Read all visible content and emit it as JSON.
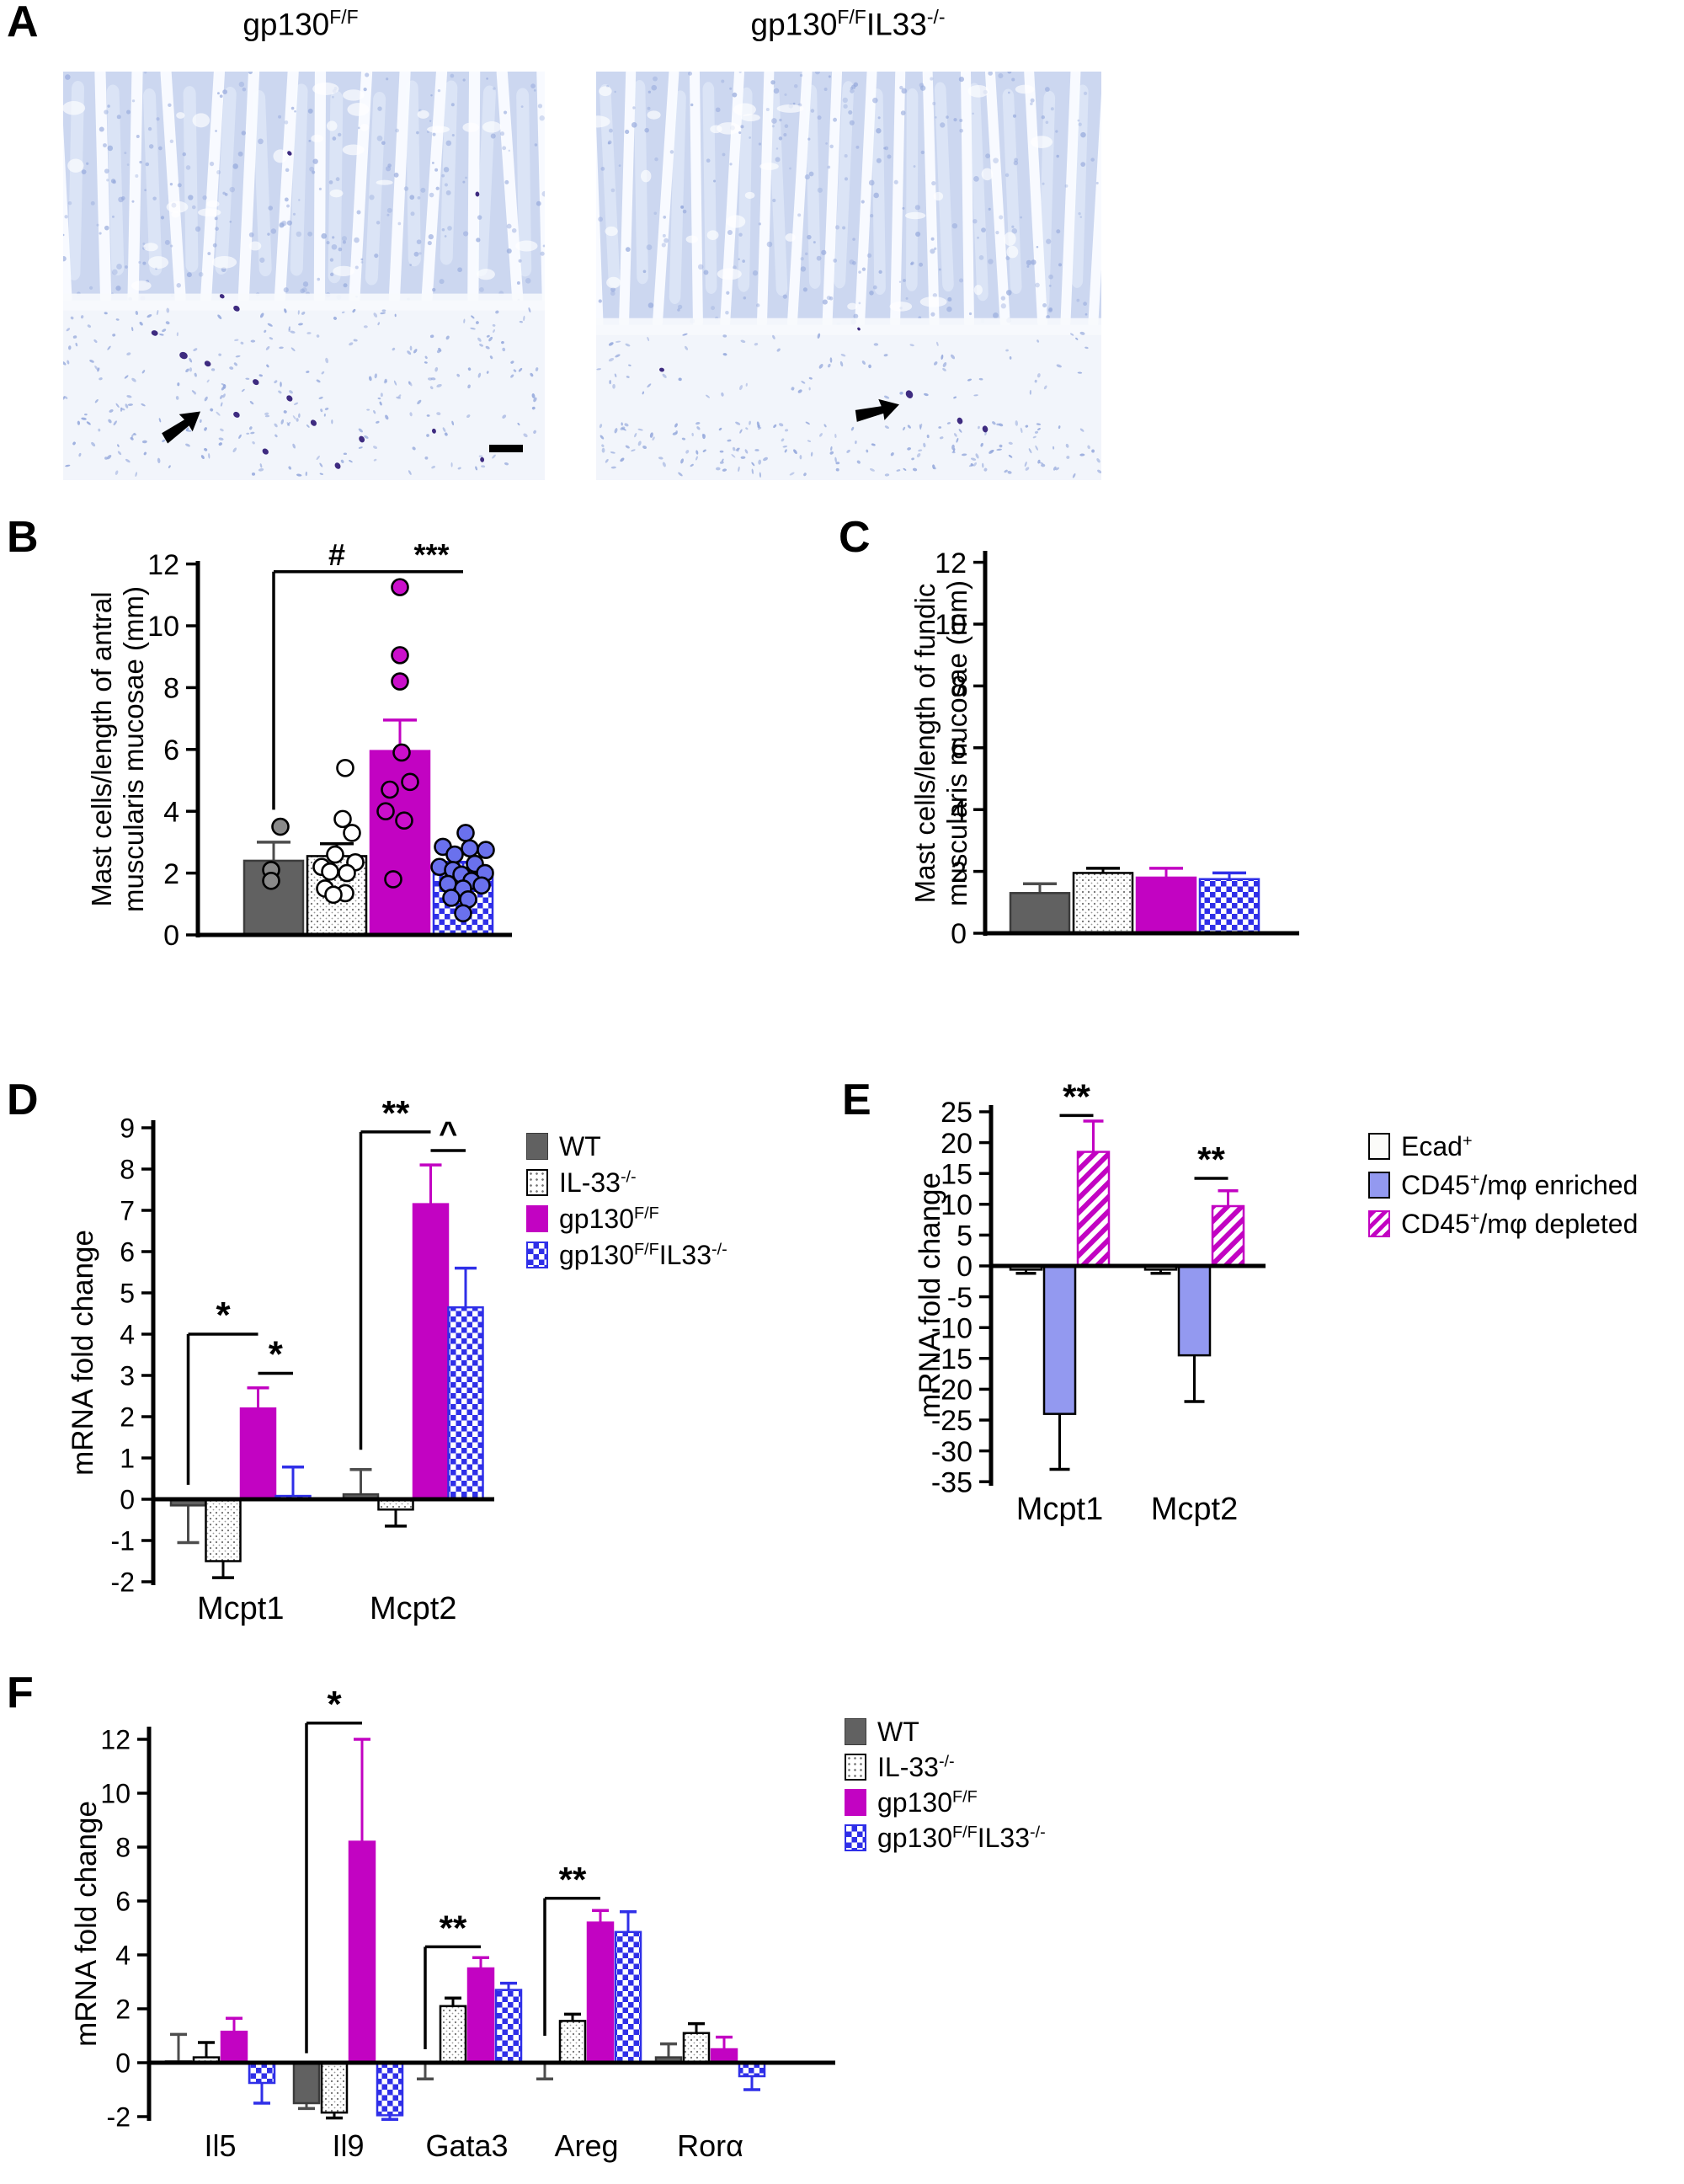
{
  "colors": {
    "magenta": "#c203c2",
    "blue": "#2f2fe8",
    "periwinkle": "#9399f0",
    "gray": "#616161",
    "err_gray": "#4d4d4d",
    "point_gray": "#8a8a8a",
    "point_blue": "#6a71ed",
    "point_magenta": "#cb0fcb",
    "hist_base": "#ccd7f0",
    "hist_nuclei": "#93a7db",
    "hist_pale": "#f2f5fb",
    "hist_dark": "#3e2b80"
  },
  "panels": {
    "A": {
      "label": "A"
    },
    "B": {
      "label": "B"
    },
    "C": {
      "label": "C"
    },
    "D": {
      "label": "D"
    },
    "E": {
      "label": "E"
    },
    "F": {
      "label": "F"
    }
  },
  "panel_a": {
    "titles": [
      {
        "parts": [
          {
            "t": "gp130"
          },
          {
            "t": "F/F",
            "sup": true
          }
        ]
      },
      {
        "parts": [
          {
            "t": "gp130"
          },
          {
            "t": "F/F",
            "sup": true
          },
          {
            "t": "IL33"
          },
          {
            "t": "-/-",
            "sup": true
          }
        ]
      }
    ],
    "images": [
      {
        "name": "histology-gp130FF",
        "arrow": true,
        "scalebar": true
      },
      {
        "name": "histology-gp130FF-IL33KO",
        "arrow": true,
        "scalebar": false
      }
    ]
  },
  "legend_groups": {
    "genotypes": [
      {
        "style": "gray",
        "parts": [
          {
            "t": "WT"
          }
        ]
      },
      {
        "style": "dotted",
        "parts": [
          {
            "t": "IL-33"
          },
          {
            "t": "-/-",
            "sup": true
          }
        ]
      },
      {
        "style": "magenta",
        "parts": [
          {
            "t": "gp130"
          },
          {
            "t": "F/F",
            "sup": true
          }
        ]
      },
      {
        "style": "checker",
        "parts": [
          {
            "t": "gp130"
          },
          {
            "t": "F/F",
            "sup": true
          },
          {
            "t": "IL33"
          },
          {
            "t": "-/-",
            "sup": true
          }
        ]
      }
    ],
    "fractions": [
      {
        "style": "white",
        "parts": [
          {
            "t": "Ecad"
          },
          {
            "t": "+",
            "sup": true
          }
        ]
      },
      {
        "style": "periwinkle",
        "parts": [
          {
            "t": "CD45"
          },
          {
            "t": "+",
            "sup": true
          },
          {
            "t": "/mφ enriched"
          }
        ]
      },
      {
        "style": "hatch",
        "parts": [
          {
            "t": "CD45"
          },
          {
            "t": "+",
            "sup": true
          },
          {
            "t": "/mφ depleted"
          }
        ]
      }
    ]
  },
  "chart_data": [
    {
      "id": "B",
      "type": "bar-scatter",
      "ylabel_lines": [
        "Mast cells/length of antral",
        "muscularis mucosae (mm)"
      ],
      "ylim": [
        0,
        12
      ],
      "yticks": [
        0,
        2,
        4,
        6,
        8,
        10,
        12
      ],
      "categories": [
        ""
      ],
      "series": [
        {
          "name": "WT",
          "style": "gray",
          "values": [
            2.4
          ],
          "err": [
            3.0
          ],
          "points": [
            [
              [
                8,
                3.5
              ],
              [
                -3,
                2.1
              ],
              [
                -3,
                1.75
              ]
            ]
          ]
        },
        {
          "name": "IL-33-/-",
          "style": "dotted",
          "values": [
            2.55
          ],
          "err": [
            2.95
          ],
          "points": [
            [
              [
                10,
                5.4
              ],
              [
                7,
                3.75
              ],
              [
                18,
                3.3
              ],
              [
                -2,
                2.6
              ],
              [
                22,
                2.35
              ],
              [
                -18,
                2.2
              ],
              [
                -8,
                2.05
              ],
              [
                12,
                2.0
              ],
              [
                -14,
                1.5
              ],
              [
                10,
                1.35
              ],
              [
                -4,
                1.3
              ]
            ]
          ]
        },
        {
          "name": "gp130F/F",
          "style": "magenta",
          "values": [
            5.95
          ],
          "err": [
            6.95
          ],
          "points": [
            [
              [
                0,
                11.25
              ],
              [
                0,
                9.05
              ],
              [
                0,
                8.2
              ],
              [
                2,
                5.9
              ],
              [
                12,
                4.95
              ],
              [
                -12,
                4.7
              ],
              [
                -17,
                4.0
              ],
              [
                5,
                3.7
              ],
              [
                -8,
                1.8
              ]
            ]
          ]
        },
        {
          "name": "gp130F/F IL33-/-",
          "style": "checker",
          "values": [
            2.1
          ],
          "err": [
            2.35
          ],
          "points": [
            [
              [
                3,
                3.3
              ],
              [
                -24,
                2.85
              ],
              [
                8,
                2.8
              ],
              [
                27,
                2.75
              ],
              [
                -10,
                2.6
              ],
              [
                14,
                2.3
              ],
              [
                -28,
                2.2
              ],
              [
                -12,
                2.1
              ],
              [
                26,
                2.0
              ],
              [
                -2,
                1.95
              ],
              [
                10,
                1.75
              ],
              [
                -18,
                1.65
              ],
              [
                22,
                1.6
              ],
              [
                0,
                1.5
              ],
              [
                -14,
                1.2
              ],
              [
                6,
                1.15
              ],
              [
                0,
                0.7
              ]
            ]
          ]
        }
      ],
      "annotations": [
        {
          "kind": "bracket",
          "text": "#",
          "y": 11.75,
          "from": [
            0,
            0
          ],
          "to": [
            0,
            2
          ],
          "drop": 4.05,
          "fs": 36
        },
        {
          "kind": "line",
          "text": "***",
          "y": 11.75,
          "from": [
            0,
            2
          ],
          "to": [
            0,
            3
          ],
          "fs": 36
        }
      ]
    },
    {
      "id": "C",
      "type": "bar",
      "ylabel_lines": [
        "Mast cells/length of fundic",
        "muscularis mucosae (mm)"
      ],
      "ylim": [
        0,
        12
      ],
      "yticks": [
        0,
        2,
        4,
        6,
        8,
        10,
        12
      ],
      "categories": [
        ""
      ],
      "series": [
        {
          "name": "WT",
          "style": "gray",
          "values": [
            1.3
          ],
          "err": [
            1.6
          ]
        },
        {
          "name": "IL-33-/-",
          "style": "dotted",
          "values": [
            1.95
          ],
          "err": [
            2.1
          ]
        },
        {
          "name": "gp130F/F",
          "style": "magenta",
          "values": [
            1.8
          ],
          "err": [
            2.1
          ]
        },
        {
          "name": "gp130F/F IL33-/-",
          "style": "checker",
          "values": [
            1.75
          ],
          "err": [
            1.95
          ]
        }
      ],
      "annotations": []
    },
    {
      "id": "D",
      "type": "bar",
      "legend": "genotypes",
      "ylabel_lines": [
        "mRNA fold change"
      ],
      "ylim": [
        -2,
        9
      ],
      "yticks": [
        -2,
        -1,
        0,
        1,
        2,
        3,
        4,
        5,
        6,
        7,
        8,
        9
      ],
      "categories": [
        "Mcpt1",
        "Mcpt2"
      ],
      "series": [
        {
          "name": "WT",
          "style": "gray",
          "values": [
            -0.15,
            0.12
          ],
          "err": [
            -1.05,
            0.72
          ]
        },
        {
          "name": "IL-33-/-",
          "style": "dotted",
          "values": [
            -1.5,
            -0.25
          ],
          "err": [
            -1.9,
            -0.65
          ]
        },
        {
          "name": "gp130F/F",
          "style": "magenta",
          "values": [
            2.2,
            7.15
          ],
          "err": [
            2.7,
            8.1
          ]
        },
        {
          "name": "gp130F/F IL33-/-",
          "style": "checker",
          "values": [
            0.08,
            4.65
          ],
          "err": [
            0.78,
            5.6
          ]
        }
      ],
      "annotations": [
        {
          "kind": "bracket",
          "text": "*",
          "y": 4.0,
          "from": [
            0,
            0
          ],
          "to": [
            0,
            2
          ],
          "drop": 0.35,
          "fs": 44
        },
        {
          "kind": "line",
          "text": "*",
          "y": 3.05,
          "from": [
            0,
            2
          ],
          "to": [
            0,
            3
          ],
          "fs": 44
        },
        {
          "kind": "bracket",
          "text": "**",
          "y": 8.9,
          "from": [
            1,
            0
          ],
          "to": [
            1,
            2
          ],
          "drop": 1.2,
          "fs": 42
        },
        {
          "kind": "line",
          "text": "^",
          "y": 8.45,
          "from": [
            1,
            2
          ],
          "to": [
            1,
            3
          ],
          "fs": 38
        }
      ]
    },
    {
      "id": "E",
      "type": "bar",
      "legend": "fractions",
      "ylabel_lines": [
        "mRNA fold change"
      ],
      "ylim": [
        -35,
        25
      ],
      "yticks": [
        -35,
        -30,
        -25,
        -20,
        -15,
        -10,
        -5,
        0,
        5,
        10,
        15,
        20,
        25
      ],
      "categories": [
        "Mcpt1",
        "Mcpt2"
      ],
      "series": [
        {
          "name": "Ecad+",
          "style": "white",
          "values": [
            -0.6,
            -0.6
          ],
          "err": [
            -1.2,
            -1.2
          ]
        },
        {
          "name": "CD45+/mφ enriched",
          "style": "periwinkle",
          "values": [
            -24,
            -14.5
          ],
          "err": [
            -33,
            -22
          ]
        },
        {
          "name": "CD45+/mφ depleted",
          "style": "hatch",
          "values": [
            18.5,
            9.7
          ],
          "err": [
            23.5,
            12.2
          ]
        }
      ],
      "annotations": [
        {
          "kind": "line",
          "text": "**",
          "y": 24.4,
          "from": [
            0,
            1
          ],
          "to": [
            0,
            2
          ],
          "fs": 42
        },
        {
          "kind": "line",
          "text": "**",
          "y": 14.2,
          "from": [
            1,
            1
          ],
          "to": [
            1,
            2
          ],
          "fs": 42
        }
      ]
    },
    {
      "id": "F",
      "type": "bar",
      "legend": "genotypes",
      "ylabel_lines": [
        "mRNA fold change"
      ],
      "ylim": [
        -2,
        12
      ],
      "yticks": [
        -2,
        0,
        2,
        4,
        6,
        8,
        10,
        12
      ],
      "categories": [
        "Il5",
        "Il9",
        "Gata3",
        "Areg",
        "Rorα"
      ],
      "series": [
        {
          "name": "WT",
          "style": "gray",
          "values": [
            0.05,
            -1.5,
            0.03,
            0.02,
            0.2
          ],
          "err": [
            1.05,
            -1.7,
            -0.6,
            -0.6,
            0.7
          ]
        },
        {
          "name": "IL-33-/-",
          "style": "dotted",
          "values": [
            0.2,
            -1.85,
            2.1,
            1.55,
            1.1
          ],
          "err": [
            0.75,
            -2.05,
            2.4,
            1.8,
            1.45
          ]
        },
        {
          "name": "gp130F/F",
          "style": "magenta",
          "values": [
            1.15,
            8.2,
            3.5,
            5.2,
            0.5
          ],
          "err": [
            1.65,
            12.0,
            3.9,
            5.65,
            0.95
          ]
        },
        {
          "name": "gp130F/F IL33-/-",
          "style": "checker",
          "values": [
            -0.75,
            -1.95,
            2.7,
            4.85,
            -0.5
          ],
          "err": [
            -1.5,
            -2.1,
            2.95,
            5.6,
            -1.0
          ]
        }
      ],
      "annotations": [
        {
          "kind": "bracket",
          "text": "*",
          "y": 12.6,
          "from": [
            1,
            0
          ],
          "to": [
            1,
            2
          ],
          "drop": 0.35,
          "fs": 44
        },
        {
          "kind": "bracket",
          "text": "**",
          "y": 4.3,
          "from": [
            2,
            0
          ],
          "to": [
            2,
            2
          ],
          "drop": 0.5,
          "fs": 42
        },
        {
          "kind": "bracket",
          "text": "**",
          "y": 6.1,
          "from": [
            3,
            0
          ],
          "to": [
            3,
            2
          ],
          "drop": 1.0,
          "fs": 42
        }
      ]
    }
  ]
}
